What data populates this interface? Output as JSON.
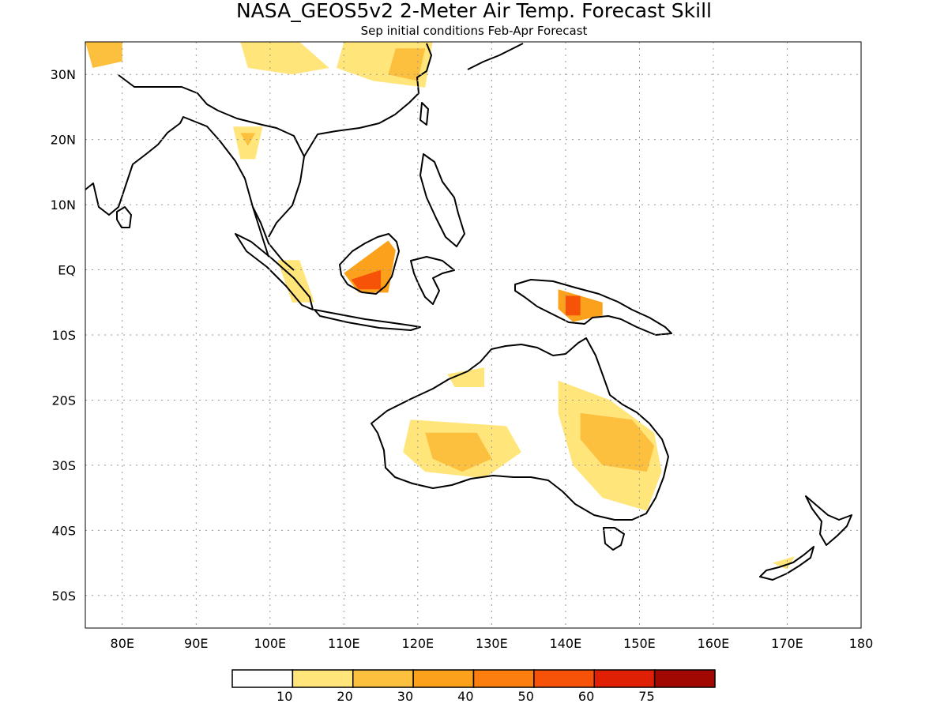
{
  "title": "NASA_GEOS5v2 2-Meter Air Temp. Forecast Skill",
  "subtitle": "Sep initial conditions  Feb-Apr Forecast",
  "map": {
    "lon_range": [
      75,
      180
    ],
    "lat_range": [
      -55,
      35
    ],
    "grid": "dotted",
    "lon_ticks": [
      {
        "value": 80,
        "label": "80E"
      },
      {
        "value": 90,
        "label": "90E"
      },
      {
        "value": 100,
        "label": "100E"
      },
      {
        "value": 110,
        "label": "110E"
      },
      {
        "value": 120,
        "label": "120E"
      },
      {
        "value": 130,
        "label": "130E"
      },
      {
        "value": 140,
        "label": "140E"
      },
      {
        "value": 150,
        "label": "150E"
      },
      {
        "value": 160,
        "label": "160E"
      },
      {
        "value": 170,
        "label": "170E"
      },
      {
        "value": 180,
        "label": "180"
      }
    ],
    "lat_ticks": [
      {
        "value": 30,
        "label": "30N"
      },
      {
        "value": 20,
        "label": "20N"
      },
      {
        "value": 10,
        "label": "10N"
      },
      {
        "value": 0,
        "label": "EQ"
      },
      {
        "value": -10,
        "label": "10S"
      },
      {
        "value": -20,
        "label": "20S"
      },
      {
        "value": -30,
        "label": "30S"
      },
      {
        "value": -40,
        "label": "40S"
      },
      {
        "value": -50,
        "label": "50S"
      }
    ]
  },
  "colorbar": {
    "levels": [
      {
        "color": "#ffffff",
        "label": ""
      },
      {
        "color": "#ffe57a",
        "label": "10"
      },
      {
        "color": "#fdbf3e",
        "label": "20"
      },
      {
        "color": "#fca11c",
        "label": "30"
      },
      {
        "color": "#fb7e0e",
        "label": "40"
      },
      {
        "color": "#f65208",
        "label": "50"
      },
      {
        "color": "#df2005",
        "label": "60"
      },
      {
        "color": "#a10802",
        "label": "75"
      }
    ]
  },
  "skill_regions": [
    {
      "name": "tibet-yellow",
      "level": 1,
      "pts": [
        [
          96,
          35
        ],
        [
          104,
          35
        ],
        [
          108,
          31
        ],
        [
          103,
          30
        ],
        [
          97,
          31
        ]
      ]
    },
    {
      "name": "east-china-yellow",
      "level": 1,
      "pts": [
        [
          110,
          35
        ],
        [
          122,
          35
        ],
        [
          121,
          28
        ],
        [
          114,
          29
        ],
        [
          109,
          31
        ]
      ]
    },
    {
      "name": "east-china-orange",
      "level": 2,
      "pts": [
        [
          117,
          34
        ],
        [
          121,
          34
        ],
        [
          120,
          29
        ],
        [
          116,
          30
        ]
      ]
    },
    {
      "name": "north-india-orange",
      "level": 2,
      "pts": [
        [
          75,
          35
        ],
        [
          80,
          35
        ],
        [
          80,
          32
        ],
        [
          76,
          31
        ]
      ]
    },
    {
      "name": "myanmar-yellow",
      "level": 1,
      "pts": [
        [
          95,
          22
        ],
        [
          99,
          22
        ],
        [
          98,
          17
        ],
        [
          96,
          17
        ]
      ]
    },
    {
      "name": "myanmar-orange",
      "level": 2,
      "pts": [
        [
          96,
          21
        ],
        [
          98,
          21
        ],
        [
          97,
          19
        ]
      ]
    },
    {
      "name": "sumatra-yellow",
      "level": 1,
      "pts": [
        [
          101,
          1.5
        ],
        [
          104,
          1.5
        ],
        [
          106,
          -5
        ],
        [
          103,
          -5
        ]
      ]
    },
    {
      "name": "borneo-orange",
      "level": 3,
      "pts": [
        [
          110,
          -0.5
        ],
        [
          116,
          4.5
        ],
        [
          117,
          3
        ],
        [
          116,
          -3.5
        ],
        [
          112,
          -3.5
        ]
      ]
    },
    {
      "name": "borneo-red",
      "level": 5,
      "pts": [
        [
          111,
          -1.5
        ],
        [
          115,
          0
        ],
        [
          115,
          -3
        ],
        [
          112,
          -3
        ]
      ]
    },
    {
      "name": "new-guinea-orange",
      "level": 3,
      "pts": [
        [
          139,
          -3
        ],
        [
          145,
          -5
        ],
        [
          145,
          -7
        ],
        [
          141,
          -8
        ],
        [
          139,
          -6
        ]
      ]
    },
    {
      "name": "new-guinea-red",
      "level": 5,
      "pts": [
        [
          140,
          -4
        ],
        [
          142,
          -4
        ],
        [
          142,
          -7
        ],
        [
          140,
          -7
        ]
      ]
    },
    {
      "name": "australia-west-yellow",
      "level": 1,
      "pts": [
        [
          119,
          -23
        ],
        [
          132,
          -24
        ],
        [
          134,
          -28
        ],
        [
          129,
          -32
        ],
        [
          121,
          -31
        ],
        [
          118,
          -28
        ]
      ]
    },
    {
      "name": "australia-west-orange",
      "level": 2,
      "pts": [
        [
          121,
          -25
        ],
        [
          128,
          -25
        ],
        [
          130,
          -29
        ],
        [
          126,
          -31
        ],
        [
          122,
          -29
        ]
      ]
    },
    {
      "name": "australia-east-yellow",
      "level": 1,
      "pts": [
        [
          139,
          -17
        ],
        [
          146,
          -20
        ],
        [
          152,
          -25
        ],
        [
          153,
          -31
        ],
        [
          151,
          -37
        ],
        [
          145,
          -35
        ],
        [
          141,
          -30
        ],
        [
          139,
          -22
        ]
      ]
    },
    {
      "name": "australia-east-orange",
      "level": 2,
      "pts": [
        [
          142,
          -22
        ],
        [
          149,
          -23
        ],
        [
          152,
          -27
        ],
        [
          151,
          -31
        ],
        [
          145,
          -30
        ],
        [
          142,
          -26
        ]
      ]
    },
    {
      "name": "australia-north-yellow",
      "level": 1,
      "pts": [
        [
          124,
          -16
        ],
        [
          129,
          -15
        ],
        [
          129,
          -18
        ],
        [
          125,
          -18
        ]
      ]
    },
    {
      "name": "new-zealand-yellow",
      "level": 1,
      "pts": [
        [
          168,
          -45
        ],
        [
          171,
          -44
        ],
        [
          170,
          -46
        ]
      ]
    }
  ]
}
